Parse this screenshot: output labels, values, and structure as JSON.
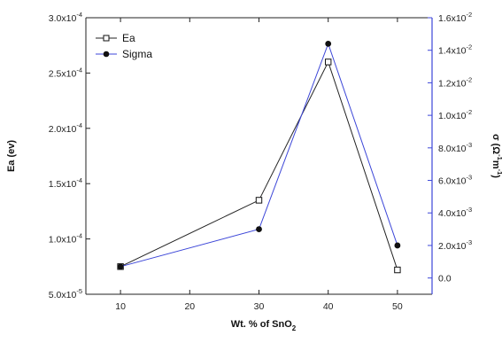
{
  "chart_data": {
    "type": "line",
    "x": [
      10,
      30,
      40,
      50
    ],
    "xticks": [
      10,
      20,
      30,
      40,
      50
    ],
    "xlim": [
      5,
      55
    ],
    "xlabel": {
      "base": "Wt. % of SnO",
      "sub": "2"
    },
    "grid": false,
    "legend_position": "top-left",
    "series": [
      {
        "name": "Ea",
        "axis": "left",
        "marker": "open-square",
        "color": "#222222",
        "values": [
          7.5e-05,
          0.000135,
          0.00026,
          7.2e-05
        ]
      },
      {
        "name": "Sigma",
        "axis": "right",
        "marker": "filled-circle",
        "color": "#3c46d8",
        "values": [
          0.0007,
          0.003,
          0.0144,
          0.002
        ]
      }
    ],
    "left_axis": {
      "label": "Ea (ev)",
      "color": "#222222",
      "ylim": [
        5e-05,
        0.0003
      ],
      "ticks": [
        {
          "value": 5e-05,
          "mant": "5.0x10",
          "exp": "-5"
        },
        {
          "value": 0.0001,
          "mant": "1.0x10",
          "exp": "-4"
        },
        {
          "value": 0.00015,
          "mant": "1.5x10",
          "exp": "-4"
        },
        {
          "value": 0.0002,
          "mant": "2.0x10",
          "exp": "-4"
        },
        {
          "value": 0.00025,
          "mant": "2.5x10",
          "exp": "-4"
        },
        {
          "value": 0.0003,
          "mant": "3.0x10",
          "exp": "-4"
        }
      ]
    },
    "right_axis": {
      "label": {
        "p1": "σ (Ω",
        "s1": "-1",
        "p2": "m",
        "s2": "-1",
        "p3": ")"
      },
      "color": "#3c46d8",
      "ylim": [
        -0.001,
        0.016
      ],
      "ticks": [
        {
          "value": 0.0,
          "mant": "0.0",
          "exp": ""
        },
        {
          "value": 0.002,
          "mant": "2.0x10",
          "exp": "-3"
        },
        {
          "value": 0.004,
          "mant": "4.0x10",
          "exp": "-3"
        },
        {
          "value": 0.006,
          "mant": "6.0x10",
          "exp": "-3"
        },
        {
          "value": 0.008,
          "mant": "8.0x10",
          "exp": "-3"
        },
        {
          "value": 0.01,
          "mant": "1.0x10",
          "exp": "-2"
        },
        {
          "value": 0.012,
          "mant": "1.2x10",
          "exp": "-2"
        },
        {
          "value": 0.014,
          "mant": "1.4x10",
          "exp": "-2"
        },
        {
          "value": 0.016,
          "mant": "1.6x10",
          "exp": "-2"
        }
      ]
    }
  }
}
